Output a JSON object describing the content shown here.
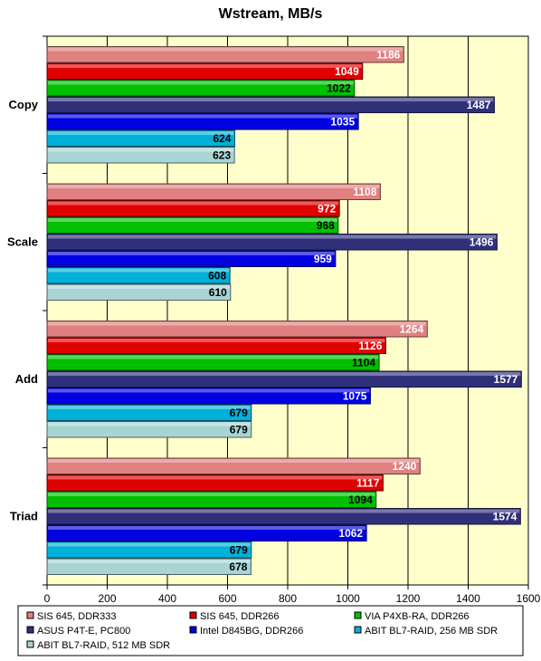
{
  "chart_data": {
    "type": "bar",
    "orientation": "horizontal",
    "title": "Wstream, MB/s",
    "xlabel": "",
    "ylabel": "",
    "xlim": [
      0,
      1600
    ],
    "x_ticks": [
      0,
      200,
      400,
      600,
      800,
      1000,
      1200,
      1400,
      1600
    ],
    "grid": true,
    "legend_position": "bottom",
    "categories": [
      "Copy",
      "Scale",
      "Add",
      "Triad"
    ],
    "series": [
      {
        "name": "SIS 645, DDR333",
        "color": "#e08080",
        "values": [
          1186,
          1108,
          1264,
          1240
        ]
      },
      {
        "name": "SIS 645, DDR266",
        "color": "#e00000",
        "values": [
          1049,
          972,
          1126,
          1117
        ]
      },
      {
        "name": "VIA P4XB-RA, DDR266",
        "color": "#00c000",
        "values": [
          1022,
          968,
          1104,
          1094
        ]
      },
      {
        "name": "ASUS P4T-E, PC800",
        "color": "#30307a",
        "values": [
          1487,
          1496,
          1577,
          1574
        ]
      },
      {
        "name": "Intel D845BG, DDR266",
        "color": "#0000e0",
        "values": [
          1035,
          959,
          1075,
          1062
        ]
      },
      {
        "name": "ABIT BL7-RAID, 256 MB SDR",
        "color": "#00b0d8",
        "values": [
          624,
          608,
          679,
          679
        ]
      },
      {
        "name": "ABIT BL7-RAID, 512 MB SDR",
        "color": "#a8d4d4",
        "values": [
          623,
          610,
          679,
          678
        ]
      }
    ]
  }
}
